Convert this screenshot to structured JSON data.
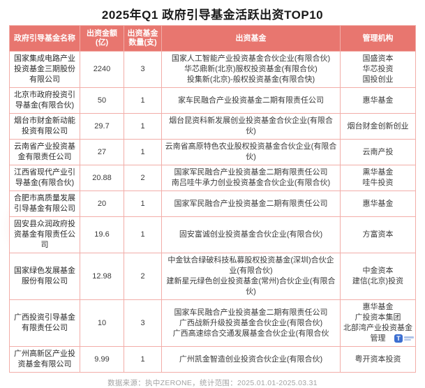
{
  "title": "2025年Q1 政府引导基金活跃出资TOP10",
  "colors": {
    "header_bg": "#E8766F",
    "table_border": "#F2ADA8",
    "title_text": "#1A1A1A",
    "footer_text": "#A3A3A3",
    "logo_blue": "#3D6FD1"
  },
  "table": {
    "headers": [
      "政府引导基金名称",
      "出资金额(亿)",
      "出资基金数量(支)",
      "出资基金",
      "管理机构"
    ],
    "rows": [
      {
        "name": "国家集成电路产业投资基金三期股份有限公司",
        "amount": "2240",
        "count": "3",
        "funds": [
          "国家人工智能产业投资基金合伙企业(有限合伙)",
          "华芯鼎新(北京)服权投资基金(有限合伙)",
          "投集新(北京)-般权投资基金(有限合快)"
        ],
        "managers": [
          "国盛资本",
          "华芯投资",
          "国投创业"
        ]
      },
      {
        "name": "北京市政府投资引导基金(有限合伙)",
        "amount": "50",
        "count": "1",
        "funds": [
          "家车民融合产业投资基金二期有限责任公司"
        ],
        "managers": [
          "惠华基金"
        ]
      },
      {
        "name": "烟台市财金新动能投资有限公司",
        "amount": "29.7",
        "count": "1",
        "funds": [
          "烟台昆资科新发展创业投资基金合伙企业(有限合伙)"
        ],
        "managers": [
          "烟台财金创新创业"
        ]
      },
      {
        "name": "云南省产业投资基金有限责任公司",
        "amount": "27",
        "count": "1",
        "funds": [
          "云南省高原特色农业股权投资基金合伙企业(有限合伙)"
        ],
        "managers": [
          "云南产投"
        ]
      },
      {
        "name": "江西省现代产业引导基金(有限合伙)",
        "amount": "20.88",
        "count": "2",
        "funds": [
          "国家军民融合产业投资基金二期有限责任公司",
          "南吕哇牛承力创业投资基金合伙企业(有限合伙)"
        ],
        "managers": [
          "熏华基金",
          "哇牛投资"
        ]
      },
      {
        "name": "合肥市高质量发展引导基金有限公司",
        "amount": "20",
        "count": "1",
        "funds": [
          "国家军民融合产业投资基金二期有限责任公司"
        ],
        "managers": [
          "惠华基金"
        ]
      },
      {
        "name": "固安县众润政府投资基金有限责任公司",
        "amount": "19.6",
        "count": "1",
        "funds": [
          "固安富诚创业投资基金合伙企业(有限合伙)"
        ],
        "managers": [
          "方富资本"
        ]
      },
      {
        "name": "国家绿色发展基金服份有限公司",
        "amount": "12.98",
        "count": "2",
        "funds": [
          "中金钛合绿破科技私募股权投资基金(深圳)合伙企业(有限合伙)",
          "建新星元绿色创业投资基金(常州)合伙企业(有限合伙)"
        ],
        "managers": [
          "中金资本",
          "建信(北京)投资"
        ]
      },
      {
        "name": "广西投资引导基金有限责任公司",
        "amount": "10",
        "count": "3",
        "funds": [
          "国家车民融合产业投资基金二期有限责任公司",
          "广西战新升级投资基金合伙企业(有限合伙)",
          "广西高速综合交通发展基金合伙企业(有限合伙"
        ],
        "managers": [
          "惠华基金",
          "广投资本集团",
          "北部湾产业投资基金管理"
        ]
      },
      {
        "name": "广州高新区产业投资基金有限公司",
        "amount": "9.99",
        "count": "1",
        "funds": [
          "广州凯金智造创业投资合伙企业(有限合伙)"
        ],
        "managers": [
          "粤开资本投资"
        ]
      }
    ]
  },
  "footer": {
    "source": "数据来源：执中ZERONE，统计范围：2025.01.01-2025.03.31"
  },
  "logo": {
    "glyph": "T"
  }
}
